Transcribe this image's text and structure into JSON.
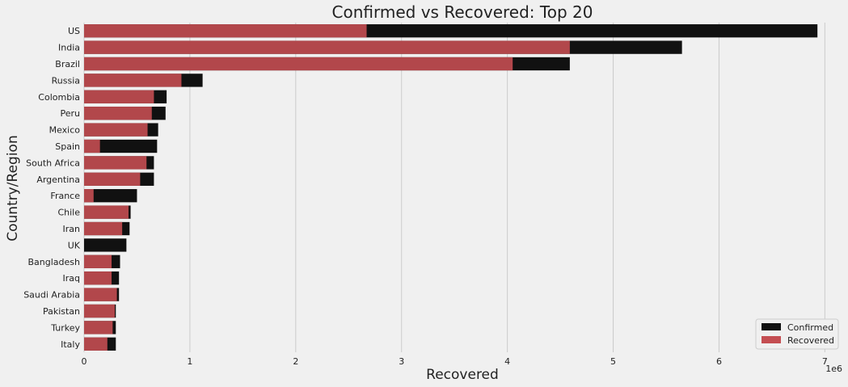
{
  "chart_data": {
    "type": "bar",
    "orientation": "horizontal",
    "title": "Confirmed vs Recovered: Top 20",
    "xlabel": "Recovered",
    "ylabel": "Country/Region",
    "x_offset_label": "1e6",
    "xlim": [
      0,
      7.15
    ],
    "x_ticks": [
      0,
      1,
      2,
      3,
      4,
      5,
      6,
      7
    ],
    "x_tick_labels": [
      "0",
      "1",
      "2",
      "3",
      "4",
      "5",
      "6",
      "7"
    ],
    "x_scale_note": "values in millions (1e6)",
    "grid": true,
    "legend_position": "bottom-right",
    "categories": [
      "US",
      "India",
      "Brazil",
      "Russia",
      "Colombia",
      "Peru",
      "Mexico",
      "Spain",
      "South Africa",
      "Argentina",
      "France",
      "Chile",
      "Iran",
      "UK",
      "Bangladesh",
      "Iraq",
      "Saudi Arabia",
      "Pakistan",
      "Turkey",
      "Italy"
    ],
    "series": [
      {
        "name": "Confirmed",
        "color": "#111111",
        "values": [
          6.93,
          5.65,
          4.59,
          1.12,
          0.78,
          0.77,
          0.7,
          0.69,
          0.66,
          0.66,
          0.5,
          0.44,
          0.43,
          0.4,
          0.34,
          0.33,
          0.33,
          0.3,
          0.3,
          0.3
        ]
      },
      {
        "name": "Recovered",
        "color": "#c44e52",
        "values": [
          2.67,
          4.59,
          4.05,
          0.92,
          0.66,
          0.64,
          0.6,
          0.15,
          0.59,
          0.53,
          0.09,
          0.42,
          0.36,
          0.0,
          0.26,
          0.26,
          0.31,
          0.29,
          0.27,
          0.22
        ]
      }
    ]
  }
}
